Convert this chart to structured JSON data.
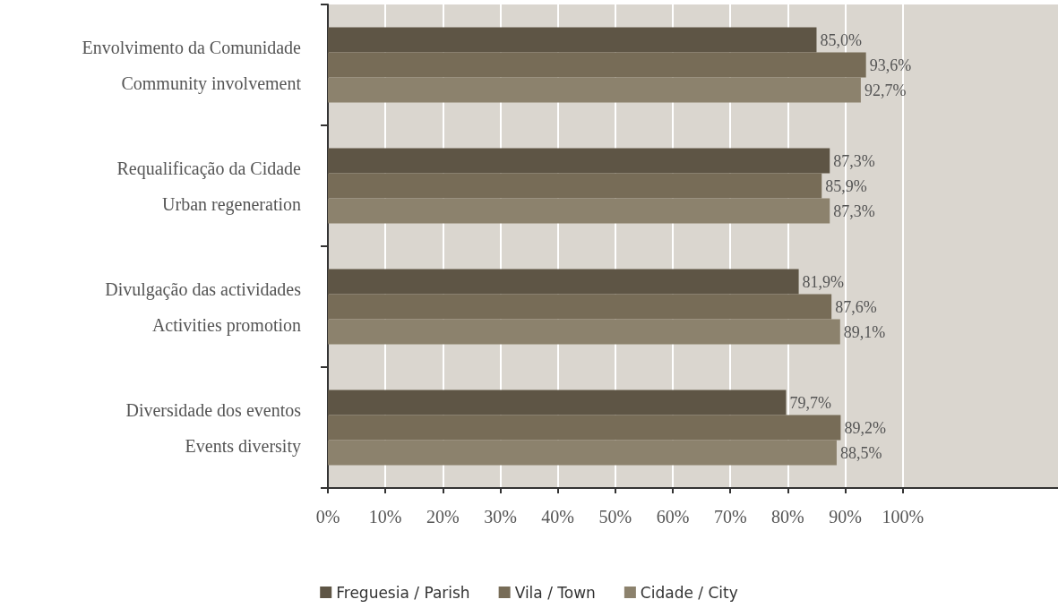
{
  "chart_data": {
    "type": "bar",
    "orientation": "horizontal",
    "categories": [
      "Envolvimento da Comunidade\nCommunity involvement",
      "Requalificação da Cidade\nUrban regeneration",
      "Divulgação das actividades\nActivities promotion",
      "Diversidade dos eventos\nEvents diversity"
    ],
    "series": [
      {
        "name": "Freguesia / Parish",
        "color": "#5e5545",
        "values": [
          85.0,
          87.3,
          81.9,
          79.7
        ],
        "value_labels": [
          "85,0%",
          "87,3%",
          "81,9%",
          "79,7%"
        ]
      },
      {
        "name": "Vila / Town",
        "color": "#776c57",
        "values": [
          93.6,
          85.9,
          87.6,
          89.2
        ],
        "value_labels": [
          "93,6%",
          "85,9%",
          "87,6%",
          "89,2%"
        ]
      },
      {
        "name": "Cidade / City",
        "color": "#8c826d",
        "values": [
          92.7,
          87.3,
          89.1,
          88.5
        ],
        "value_labels": [
          "92,7%",
          "87,3%",
          "89,1%",
          "88,5%"
        ]
      }
    ],
    "xlim": [
      0,
      127
    ],
    "xticks": [
      {
        "value": 0,
        "label": "0%"
      },
      {
        "value": 10,
        "label": "10%"
      },
      {
        "value": 20,
        "label": "20%"
      },
      {
        "value": 30,
        "label": "30%"
      },
      {
        "value": 40,
        "label": "40%"
      },
      {
        "value": 50,
        "label": "50%"
      },
      {
        "value": 60,
        "label": "60%"
      },
      {
        "value": 70,
        "label": "70%"
      },
      {
        "value": 80,
        "label": "80%"
      },
      {
        "value": 90,
        "label": "90%"
      },
      {
        "value": 100,
        "label": "100%"
      }
    ],
    "grid": "x",
    "legend": "bottom"
  }
}
